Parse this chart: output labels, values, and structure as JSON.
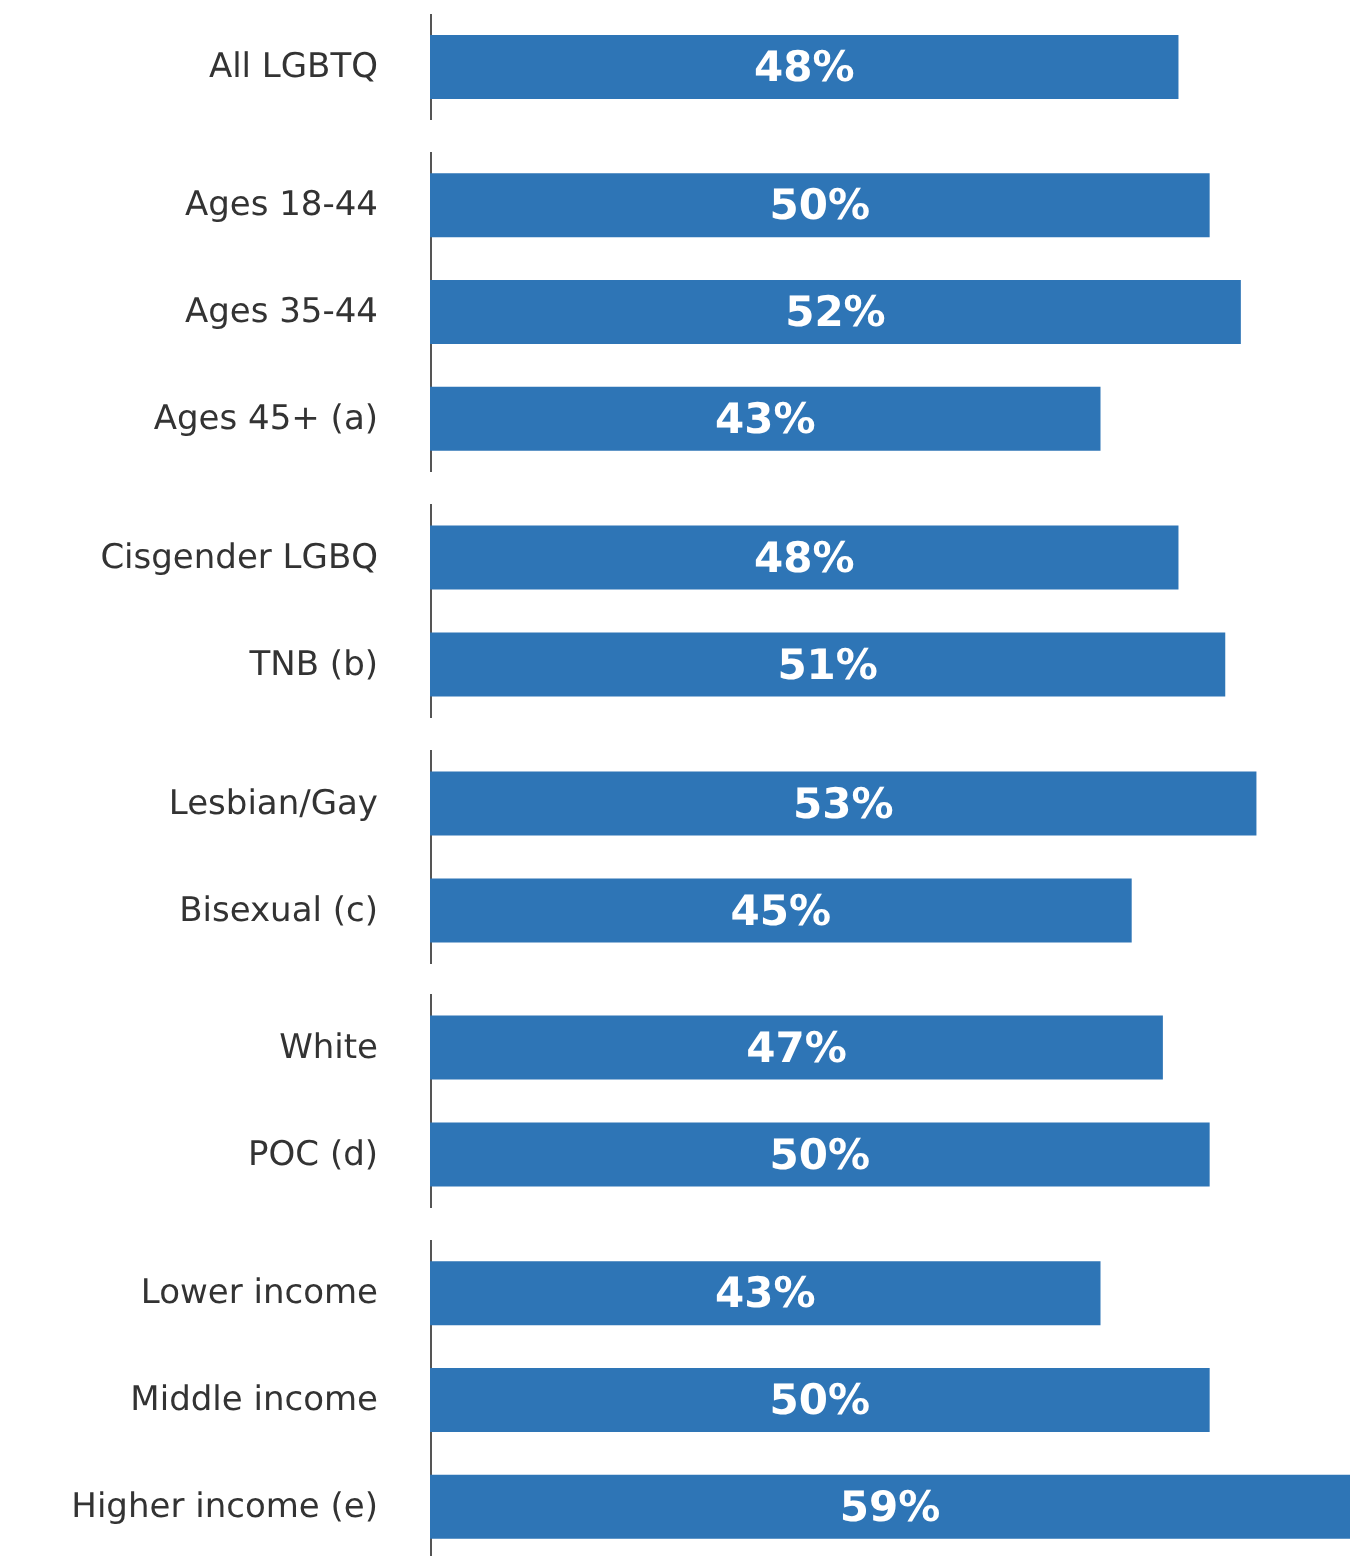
{
  "chart_data": [
    {
      "type": "bar",
      "orientation": "horizontal",
      "color": "#2e75b6",
      "categories": [
        "All LGBTQ"
      ],
      "values": [
        48
      ],
      "value_labels": [
        "48%"
      ]
    },
    {
      "type": "bar",
      "orientation": "horizontal",
      "color": "#2e75b6",
      "categories": [
        "Ages 18-44",
        "Ages 35-44",
        "Ages 45+ (a)"
      ],
      "values": [
        50,
        52,
        43
      ],
      "value_labels": [
        "50%",
        "52%",
        "43%"
      ]
    },
    {
      "type": "bar",
      "orientation": "horizontal",
      "color": "#2e75b6",
      "categories": [
        "Cisgender LGBQ",
        "TNB (b)"
      ],
      "values": [
        48,
        51
      ],
      "value_labels": [
        "48%",
        "51%"
      ]
    },
    {
      "type": "bar",
      "orientation": "horizontal",
      "color": "#2e75b6",
      "categories": [
        "Lesbian/Gay",
        "Bisexual (c)"
      ],
      "values": [
        53,
        45
      ],
      "value_labels": [
        "53%",
        "45%"
      ]
    },
    {
      "type": "bar",
      "orientation": "horizontal",
      "color": "#2e75b6",
      "categories": [
        "White",
        "POC (d)"
      ],
      "values": [
        47,
        50
      ],
      "value_labels": [
        "47%",
        "50%"
      ]
    },
    {
      "type": "bar",
      "orientation": "horizontal",
      "color": "#2e75b6",
      "categories": [
        "Lower income",
        "Middle income",
        "Higher income (e)"
      ],
      "values": [
        43,
        50,
        59
      ],
      "value_labels": [
        "43%",
        "50%",
        "59%"
      ]
    }
  ]
}
